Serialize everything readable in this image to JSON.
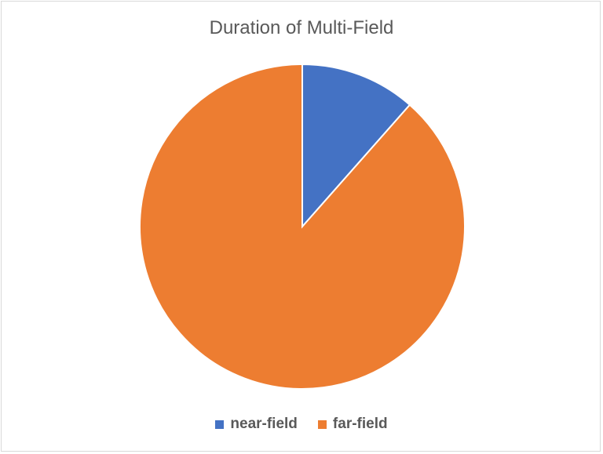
{
  "chart_data": {
    "type": "pie",
    "title": "Duration of Multi-Field",
    "categories": [
      "near-field",
      "far-field"
    ],
    "values": [
      11.5,
      88.5
    ],
    "colors": [
      "#4472C4",
      "#ED7D31"
    ],
    "legend_position": "bottom"
  }
}
